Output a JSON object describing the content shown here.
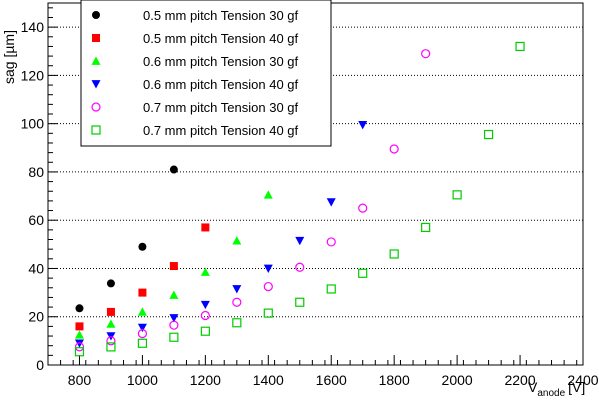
{
  "chart_data": {
    "type": "scatter",
    "title": "",
    "xlabel_main": "V",
    "xlabel_sub": "anode",
    "xlabel_unit": "[V]",
    "ylabel": "sag [µm]",
    "xlim": [
      700,
      2400
    ],
    "ylim": [
      0,
      150
    ],
    "x_ticks": [
      800,
      1000,
      1200,
      1400,
      1600,
      1800,
      2000,
      2200,
      2400
    ],
    "y_ticks": [
      0,
      20,
      40,
      60,
      80,
      100,
      120,
      140
    ],
    "grid": "horizontal dotted",
    "legend_position": "top-left",
    "series": [
      {
        "name": "0.5 mm pitch Tension 30 gf",
        "marker": "filled-circle",
        "color": "#000000",
        "points": [
          [
            800,
            23.5
          ],
          [
            900,
            33.8
          ],
          [
            1000,
            49
          ],
          [
            1100,
            81
          ]
        ]
      },
      {
        "name": "0.5 mm pitch Tension 40 gf",
        "marker": "filled-square",
        "color": "#ff0000",
        "points": [
          [
            800,
            16
          ],
          [
            900,
            22
          ],
          [
            1000,
            30
          ],
          [
            1100,
            41
          ],
          [
            1200,
            57
          ]
        ]
      },
      {
        "name": "0.6 mm pitch Tension 30 gf",
        "marker": "filled-triangle-up",
        "color": "#00ff00",
        "points": [
          [
            800,
            12.5
          ],
          [
            900,
            17
          ],
          [
            1000,
            22
          ],
          [
            1100,
            29
          ],
          [
            1200,
            38.5
          ],
          [
            1300,
            51.5
          ],
          [
            1400,
            70.5
          ]
        ]
      },
      {
        "name": "0.6 mm pitch Tension 40 gf",
        "marker": "filled-triangle-down",
        "color": "#0000ff",
        "points": [
          [
            800,
            9
          ],
          [
            900,
            12
          ],
          [
            1000,
            15.5
          ],
          [
            1100,
            19.5
          ],
          [
            1200,
            25
          ],
          [
            1300,
            31.5
          ],
          [
            1400,
            40
          ],
          [
            1500,
            51.5
          ],
          [
            1600,
            67.5
          ],
          [
            1700,
            99.5
          ]
        ]
      },
      {
        "name": "0.7 mm pitch Tension 30 gf",
        "marker": "open-circle",
        "color": "#ff00ff",
        "points": [
          [
            800,
            7.5
          ],
          [
            900,
            10
          ],
          [
            1000,
            13
          ],
          [
            1100,
            16.5
          ],
          [
            1200,
            20.5
          ],
          [
            1300,
            26
          ],
          [
            1400,
            32.5
          ],
          [
            1500,
            40.5
          ],
          [
            1600,
            51
          ],
          [
            1700,
            65
          ],
          [
            1800,
            89.5
          ],
          [
            1900,
            129
          ]
        ]
      },
      {
        "name": "0.7 mm pitch Tension 40 gf",
        "marker": "open-square",
        "color": "#00cc00",
        "points": [
          [
            800,
            5.5
          ],
          [
            900,
            7.5
          ],
          [
            1000,
            9
          ],
          [
            1100,
            11.5
          ],
          [
            1200,
            14
          ],
          [
            1300,
            17.5
          ],
          [
            1400,
            21.5
          ],
          [
            1500,
            26
          ],
          [
            1600,
            31.5
          ],
          [
            1700,
            38
          ],
          [
            1800,
            46
          ],
          [
            1900,
            57
          ],
          [
            2000,
            70.5
          ],
          [
            2100,
            95.5
          ],
          [
            2200,
            132
          ]
        ]
      }
    ]
  }
}
